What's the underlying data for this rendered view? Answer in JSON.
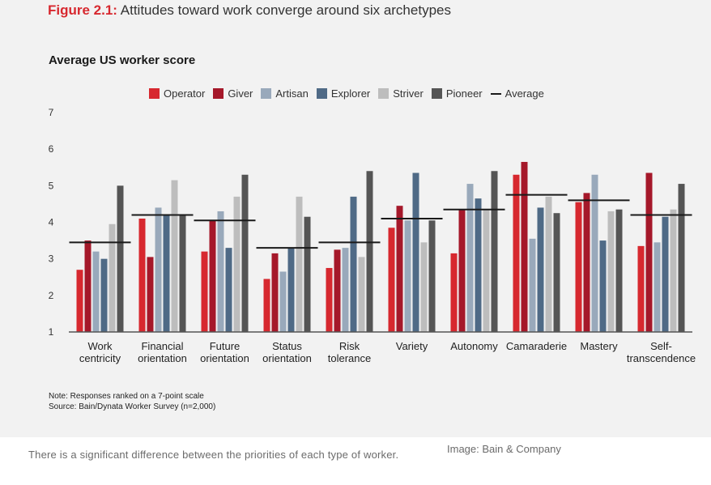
{
  "figure": {
    "number": "Figure 2.1:",
    "title": "Attitudes toward work converge around six archetypes"
  },
  "notes": {
    "note": "Note: Responses ranked on a 7-point scale",
    "source": "Source: Bain/Dynata Worker Survey (n=2,000)"
  },
  "caption": "There is a significant difference between the priorities of each type of worker.",
  "credit": "Image: Bain & Company",
  "colors": {
    "Operator": "#d7282f",
    "Giver": "#a5182a",
    "Artisan": "#99a9bb",
    "Explorer": "#4f6a86",
    "Striver": "#bdbdbd",
    "Pioneer": "#555555",
    "Average": "#1a1a1a"
  },
  "chart_data": {
    "type": "bar",
    "title": "Average US worker score",
    "ylim": [
      1,
      7
    ],
    "yticks": [
      "1",
      "2",
      "3",
      "4",
      "5",
      "6",
      "7"
    ],
    "legend_position": "top",
    "average_label": "Average",
    "categories": [
      [
        "Work",
        "centricity"
      ],
      [
        "Financial",
        "orientation"
      ],
      [
        "Future",
        "orientation"
      ],
      [
        "Status",
        "orientation"
      ],
      [
        "Risk",
        "tolerance"
      ],
      [
        "Variety"
      ],
      [
        "Autonomy"
      ],
      [
        "Camaraderie"
      ],
      [
        "Mastery"
      ],
      [
        "Self-",
        "transcendence"
      ]
    ],
    "series": [
      {
        "name": "Operator",
        "values": [
          2.7,
          4.1,
          3.2,
          2.45,
          2.75,
          3.85,
          3.15,
          5.3,
          4.55,
          3.35
        ]
      },
      {
        "name": "Giver",
        "values": [
          3.5,
          3.05,
          4.05,
          3.15,
          3.25,
          4.45,
          4.35,
          5.65,
          4.8,
          5.35
        ]
      },
      {
        "name": "Artisan",
        "values": [
          3.2,
          4.4,
          4.3,
          2.65,
          3.3,
          4.05,
          5.05,
          3.55,
          5.3,
          3.45
        ]
      },
      {
        "name": "Explorer",
        "values": [
          3.0,
          4.2,
          3.3,
          3.3,
          4.7,
          5.35,
          4.65,
          4.4,
          3.5,
          4.15
        ]
      },
      {
        "name": "Striver",
        "values": [
          3.95,
          5.15,
          4.7,
          4.7,
          3.05,
          3.45,
          4.35,
          4.7,
          4.3,
          4.35
        ]
      },
      {
        "name": "Pioneer",
        "values": [
          5.0,
          4.2,
          5.3,
          4.15,
          5.4,
          4.05,
          5.4,
          4.25,
          4.35,
          5.05
        ]
      }
    ],
    "average": [
      3.45,
      4.2,
      4.05,
      3.3,
      3.45,
      4.1,
      4.35,
      4.75,
      4.6,
      4.2
    ]
  }
}
